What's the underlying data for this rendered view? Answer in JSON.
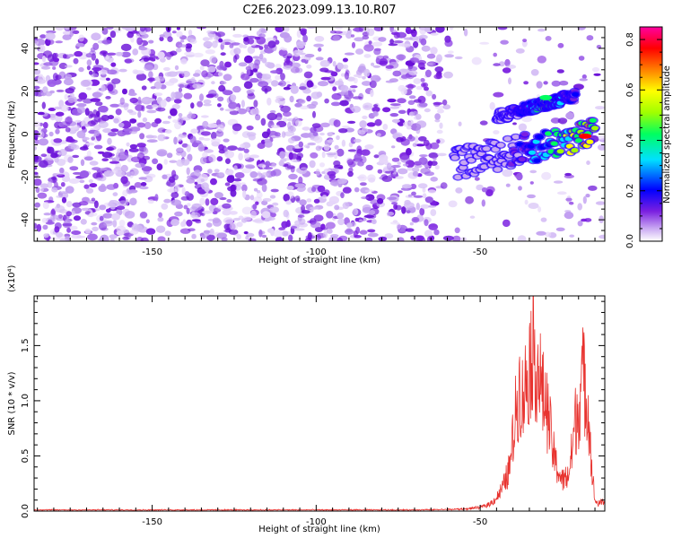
{
  "title": "C2E6.2023.099.13.10.R07",
  "colors": {
    "background": "#ffffff",
    "axis": "#000000",
    "snr_line": "#e8332f",
    "spectrogram_low": "#d8c4f5",
    "spectrogram_mid": "#7a1fe0"
  },
  "chart_data": [
    {
      "type": "heatmap",
      "title": "C2E6.2023.099.13.10.R07",
      "xlabel": "Height of straight line (km)",
      "ylabel": "Frequency (Hz)",
      "xlim": [
        -186,
        -12
      ],
      "ylim": [
        -50,
        50
      ],
      "xticks": [
        -150,
        -100,
        -50
      ],
      "yticks": [
        -40,
        -20,
        0,
        20,
        40
      ],
      "colorbar": {
        "label": "Normalized spectral amplitude",
        "range": [
          0.0,
          0.85
        ],
        "ticks": [
          0.0,
          0.2,
          0.4,
          0.6,
          0.8
        ],
        "colormap": "white-purple-blue-cyan-green-yellow-orange-red-magenta"
      },
      "noise_amplitude": 0.1,
      "signal_tracks": [
        {
          "x_start": -58,
          "x_end": -15,
          "freq_start": -14,
          "freq_end": 0,
          "peak_amplitude": 0.8,
          "peak_x": -18
        },
        {
          "x_start": -45,
          "x_end": -21,
          "freq_start": 8,
          "freq_end": 18,
          "peak_amplitude": 0.5,
          "peak_x": -30
        }
      ]
    },
    {
      "type": "line",
      "xlabel": "Height of straight line (km)",
      "ylabel": "SNR (10 * v/v)",
      "y_multiplier": "(x10⁴)",
      "xlim": [
        -186,
        -12
      ],
      "ylim": [
        0.0,
        1.95
      ],
      "xticks": [
        -150,
        -100,
        -50
      ],
      "yticks": [
        0.0,
        0.5,
        1.0,
        1.5
      ],
      "series": [
        {
          "x": [
            -186,
            -160,
            -140,
            -120,
            -100,
            -80,
            -70,
            -60,
            -55,
            -50,
            -47,
            -45,
            -43,
            -41,
            -40,
            -39,
            -38,
            -37,
            -36,
            -35,
            -34,
            -33,
            -32,
            -31,
            -30,
            -29,
            -28,
            -27,
            -26,
            -25,
            -24,
            -23,
            -22,
            -21,
            -20,
            -19,
            -18,
            -17,
            -16,
            -15,
            -14,
            -13,
            -12
          ],
          "y": [
            0.01,
            0.01,
            0.01,
            0.01,
            0.01,
            0.01,
            0.01,
            0.015,
            0.02,
            0.04,
            0.08,
            0.15,
            0.28,
            0.5,
            0.85,
            1.2,
            1.45,
            1.3,
            1.5,
            1.7,
            1.95,
            1.75,
            1.6,
            1.35,
            1.25,
            1.05,
            0.75,
            0.55,
            0.45,
            0.35,
            0.38,
            0.42,
            0.7,
            1.05,
            1.2,
            1.6,
            1.45,
            1.2,
            0.5,
            0.12,
            0.08,
            0.1,
            0.12
          ]
        }
      ]
    }
  ]
}
